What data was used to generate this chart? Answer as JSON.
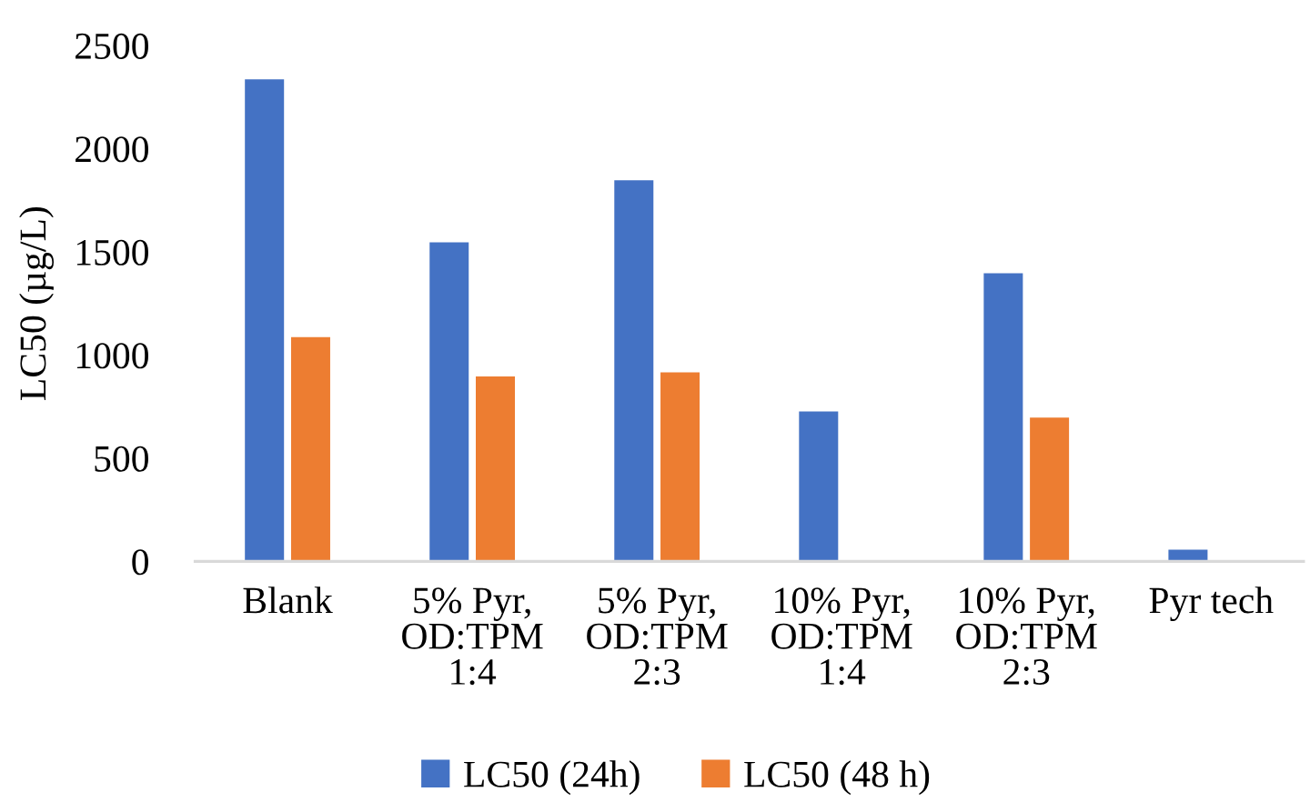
{
  "chart_data": {
    "type": "bar",
    "ylabel": "LC50 (µg/L)",
    "categories": [
      "Blank",
      "5% Pyr,\nOD:TPM\n1:4",
      "5% Pyr,\nOD:TPM\n2:3",
      "10% Pyr,\nOD:TPM\n1:4",
      "10% Pyr,\nOD:TPM\n2:3",
      "Pyr tech"
    ],
    "series": [
      {
        "name": "LC50 (24h)",
        "color": "#4472c4",
        "values": [
          2340,
          1550,
          1850,
          730,
          1400,
          60
        ]
      },
      {
        "name": "LC50 (48 h)",
        "color": "#ed7d31",
        "values": [
          1090,
          900,
          920,
          null,
          700,
          null
        ]
      }
    ],
    "ylim": [
      0,
      2500
    ],
    "yticks": [
      0,
      500,
      1000,
      1500,
      2000,
      2500
    ],
    "grid": false,
    "legend": "bottom"
  }
}
